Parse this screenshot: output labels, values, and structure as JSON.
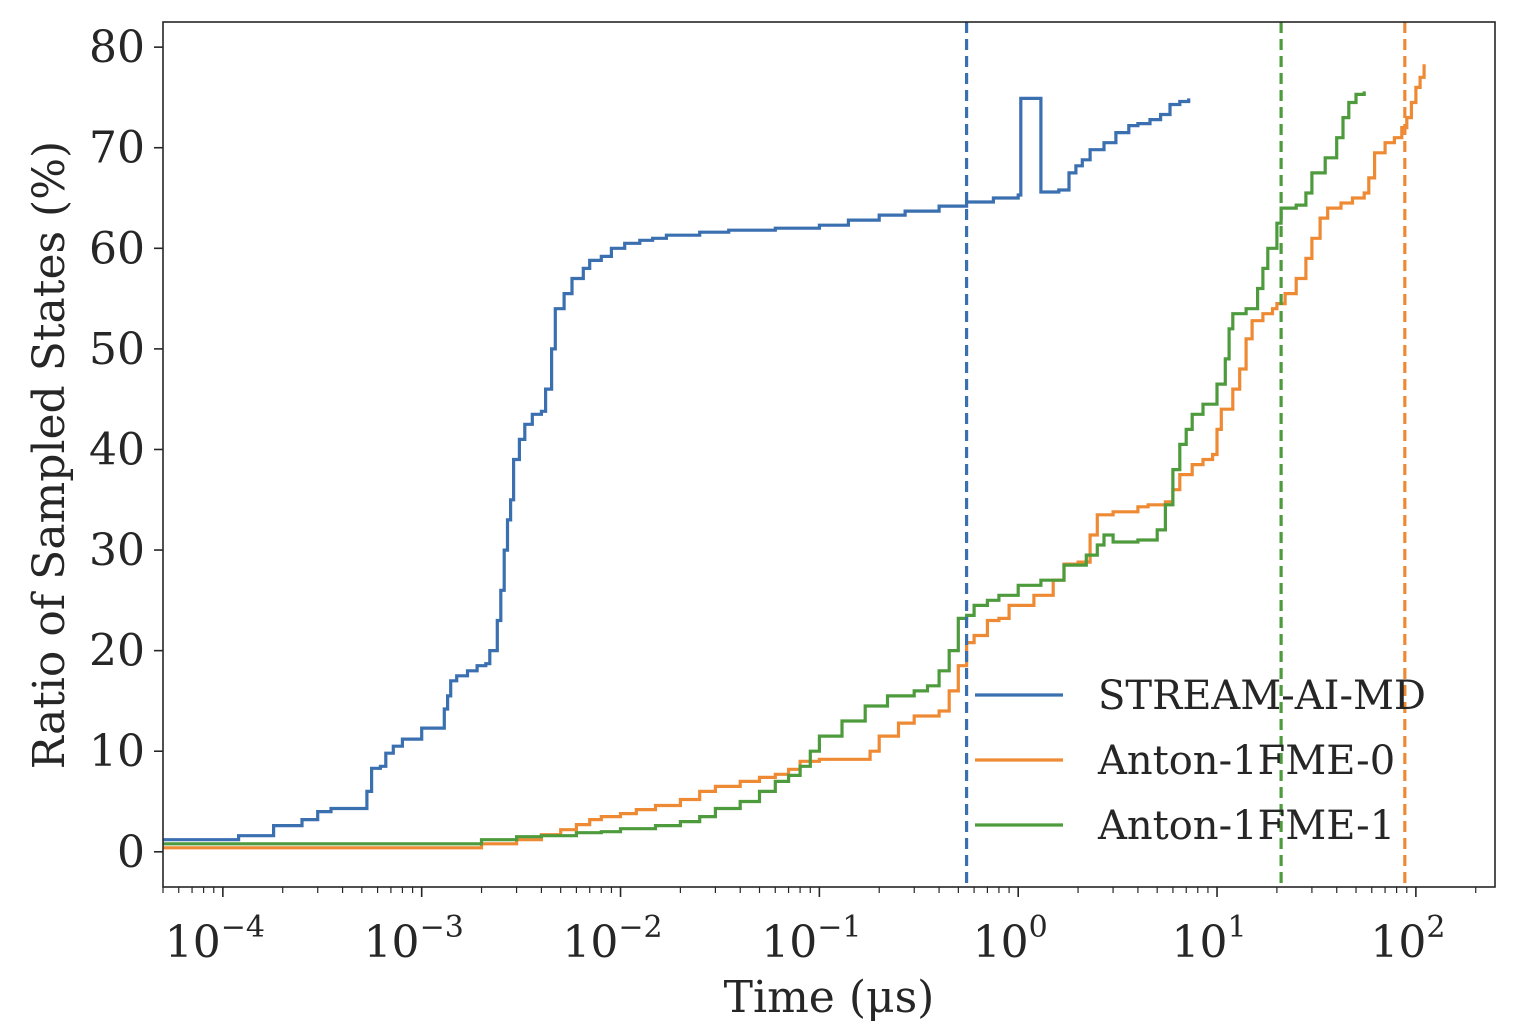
{
  "chart_data": {
    "type": "line",
    "title": "",
    "xlabel": "Time (μs)",
    "ylabel": "Ratio of Sampled States (%)",
    "xscale": "log",
    "xlim": [
      5e-05,
      250
    ],
    "ylim": [
      -3.5,
      82.5
    ],
    "yticks": [
      0,
      10,
      20,
      30,
      40,
      50,
      60,
      70,
      80
    ],
    "ytick_labels": [
      "0",
      "10",
      "20",
      "30",
      "40",
      "50",
      "60",
      "70",
      "80"
    ],
    "xticks": [
      {
        "value": 0.0001,
        "base": "10",
        "exp": "−4"
      },
      {
        "value": 0.001,
        "base": "10",
        "exp": "−3"
      },
      {
        "value": 0.01,
        "base": "10",
        "exp": "−2"
      },
      {
        "value": 0.1,
        "base": "10",
        "exp": "−1"
      },
      {
        "value": 1,
        "base": "10",
        "exp": "0"
      },
      {
        "value": 10,
        "base": "10",
        "exp": "1"
      },
      {
        "value": 100,
        "base": "10",
        "exp": "2"
      }
    ],
    "grid": false,
    "legend_position": "lower-right",
    "series": [
      {
        "name": "STREAM-AI-MD",
        "color": "#3a6fb0",
        "points": [
          [
            5e-05,
            1.2
          ],
          [
            0.00012,
            1.2
          ],
          [
            0.00012,
            1.6
          ],
          [
            0.00018,
            1.6
          ],
          [
            0.00018,
            2.6
          ],
          [
            0.00025,
            2.6
          ],
          [
            0.00025,
            3.2
          ],
          [
            0.0003,
            3.2
          ],
          [
            0.0003,
            4.0
          ],
          [
            0.00035,
            4.0
          ],
          [
            0.00035,
            4.3
          ],
          [
            0.0005,
            4.3
          ],
          [
            0.00053,
            6.0
          ],
          [
            0.00056,
            8.3
          ],
          [
            0.00062,
            8.5
          ],
          [
            0.00066,
            9.8
          ],
          [
            0.00072,
            10.5
          ],
          [
            0.0008,
            11.2
          ],
          [
            0.001,
            11.2
          ],
          [
            0.001,
            12.3
          ],
          [
            0.0012,
            12.3
          ],
          [
            0.0013,
            14.2
          ],
          [
            0.00135,
            15.5
          ],
          [
            0.0014,
            17.0
          ],
          [
            0.0015,
            17.5
          ],
          [
            0.0017,
            18.0
          ],
          [
            0.0019,
            18.5
          ],
          [
            0.0021,
            18.7
          ],
          [
            0.0022,
            20.0
          ],
          [
            0.0024,
            23.0
          ],
          [
            0.0025,
            26.0
          ],
          [
            0.0026,
            30.0
          ],
          [
            0.0027,
            33.0
          ],
          [
            0.0028,
            35.0
          ],
          [
            0.0029,
            39.0
          ],
          [
            0.0031,
            41.0
          ],
          [
            0.0033,
            42.5
          ],
          [
            0.0036,
            43.5
          ],
          [
            0.004,
            43.8
          ],
          [
            0.0042,
            46.0
          ],
          [
            0.0045,
            50.0
          ],
          [
            0.0047,
            54.0
          ],
          [
            0.0052,
            55.5
          ],
          [
            0.0057,
            57.0
          ],
          [
            0.0065,
            58.0
          ],
          [
            0.007,
            58.8
          ],
          [
            0.008,
            59.2
          ],
          [
            0.009,
            60.0
          ],
          [
            0.0105,
            60.5
          ],
          [
            0.0125,
            60.8
          ],
          [
            0.0145,
            61.0
          ],
          [
            0.017,
            61.3
          ],
          [
            0.025,
            61.6
          ],
          [
            0.035,
            61.8
          ],
          [
            0.06,
            62.0
          ],
          [
            0.1,
            62.3
          ],
          [
            0.14,
            62.8
          ],
          [
            0.2,
            63.3
          ],
          [
            0.27,
            63.7
          ],
          [
            0.4,
            64.2
          ],
          [
            0.55,
            64.6
          ],
          [
            0.75,
            65.0
          ],
          [
            1.0,
            65.3
          ],
          [
            1.3,
            65.6
          ],
          [
            1.6,
            65.8
          ],
          [
            1.8,
            67.5
          ],
          [
            1.95,
            68.2
          ],
          [
            2.1,
            68.8
          ],
          [
            2.3,
            69.8
          ],
          [
            2.7,
            70.5
          ],
          [
            3.1,
            71.5
          ],
          [
            3.6,
            72.2
          ],
          [
            4.0,
            72.4
          ],
          [
            4.6,
            72.8
          ],
          [
            5.2,
            73.3
          ],
          [
            5.8,
            74.3
          ],
          [
            6.5,
            74.6
          ],
          [
            7.2,
            74.9
          ],
          [
            1.03,
            74.9
          ]
        ]
      },
      {
        "name": "Anton-1FME-0",
        "color": "#ef8a34",
        "points": [
          [
            5e-05,
            0.4
          ],
          [
            0.001,
            0.4
          ],
          [
            0.002,
            0.8
          ],
          [
            0.003,
            1.2
          ],
          [
            0.004,
            1.7
          ],
          [
            0.005,
            2.2
          ],
          [
            0.006,
            2.7
          ],
          [
            0.007,
            3.2
          ],
          [
            0.008,
            3.5
          ],
          [
            0.01,
            3.8
          ],
          [
            0.012,
            4.2
          ],
          [
            0.015,
            4.6
          ],
          [
            0.02,
            5.2
          ],
          [
            0.025,
            6.0
          ],
          [
            0.03,
            6.5
          ],
          [
            0.04,
            7.0
          ],
          [
            0.05,
            7.4
          ],
          [
            0.06,
            7.7
          ],
          [
            0.07,
            8.2
          ],
          [
            0.08,
            9.0
          ],
          [
            0.1,
            9.2
          ],
          [
            0.15,
            9.2
          ],
          [
            0.18,
            10.0
          ],
          [
            0.2,
            11.5
          ],
          [
            0.25,
            12.8
          ],
          [
            0.3,
            13.5
          ],
          [
            0.4,
            14.0
          ],
          [
            0.45,
            16.0
          ],
          [
            0.5,
            18.5
          ],
          [
            0.55,
            20.8
          ],
          [
            0.6,
            21.5
          ],
          [
            0.7,
            23.0
          ],
          [
            0.8,
            23.2
          ],
          [
            0.9,
            24.5
          ],
          [
            1.2,
            25.5
          ],
          [
            1.5,
            27.0
          ],
          [
            1.7,
            28.6
          ],
          [
            2.0,
            28.8
          ],
          [
            2.3,
            31.5
          ],
          [
            2.5,
            33.5
          ],
          [
            3.0,
            33.8
          ],
          [
            4.0,
            34.3
          ],
          [
            4.5,
            34.5
          ],
          [
            5.5,
            34.8
          ],
          [
            6.0,
            36.0
          ],
          [
            6.5,
            37.5
          ],
          [
            7.5,
            38.5
          ],
          [
            8.5,
            39.0
          ],
          [
            9.5,
            39.5
          ],
          [
            10.0,
            42.0
          ],
          [
            10.5,
            44.0
          ],
          [
            12,
            46.0
          ],
          [
            13,
            48.0
          ],
          [
            14,
            51.0
          ],
          [
            15,
            52.8
          ],
          [
            17,
            53.5
          ],
          [
            19,
            54.0
          ],
          [
            20,
            54.5
          ],
          [
            22,
            55.5
          ],
          [
            25,
            57.0
          ],
          [
            28,
            59.0
          ],
          [
            30,
            61.0
          ],
          [
            33,
            63.0
          ],
          [
            36,
            64.0
          ],
          [
            42,
            64.5
          ],
          [
            48,
            65.0
          ],
          [
            55,
            65.5
          ],
          [
            58,
            67.0
          ],
          [
            62,
            69.5
          ],
          [
            70,
            70.5
          ],
          [
            78,
            71.0
          ],
          [
            85,
            72.0
          ],
          [
            90,
            73.0
          ],
          [
            95,
            74.5
          ],
          [
            100,
            76.0
          ],
          [
            105,
            77.0
          ],
          [
            110,
            78.3
          ]
        ]
      },
      {
        "name": "Anton-1FME-1",
        "color": "#4d9b3c",
        "points": [
          [
            5e-05,
            0.8
          ],
          [
            0.001,
            0.8
          ],
          [
            0.002,
            1.2
          ],
          [
            0.003,
            1.5
          ],
          [
            0.004,
            1.6
          ],
          [
            0.006,
            1.9
          ],
          [
            0.008,
            2.0
          ],
          [
            0.01,
            2.3
          ],
          [
            0.015,
            2.6
          ],
          [
            0.02,
            3.0
          ],
          [
            0.025,
            3.5
          ],
          [
            0.03,
            4.3
          ],
          [
            0.04,
            5.0
          ],
          [
            0.05,
            6.0
          ],
          [
            0.06,
            7.0
          ],
          [
            0.07,
            7.6
          ],
          [
            0.08,
            8.5
          ],
          [
            0.09,
            10.0
          ],
          [
            0.1,
            11.5
          ],
          [
            0.13,
            13.0
          ],
          [
            0.17,
            14.5
          ],
          [
            0.22,
            15.5
          ],
          [
            0.3,
            16.0
          ],
          [
            0.35,
            16.5
          ],
          [
            0.4,
            18.0
          ],
          [
            0.45,
            20.0
          ],
          [
            0.5,
            23.2
          ],
          [
            0.55,
            23.5
          ],
          [
            0.6,
            24.5
          ],
          [
            0.7,
            25.0
          ],
          [
            0.8,
            25.5
          ],
          [
            1.0,
            26.5
          ],
          [
            1.3,
            27.0
          ],
          [
            1.7,
            28.5
          ],
          [
            2.2,
            29.5
          ],
          [
            2.5,
            30.5
          ],
          [
            2.7,
            31.5
          ],
          [
            3.0,
            30.8
          ],
          [
            4.0,
            31.0
          ],
          [
            5.0,
            32.0
          ],
          [
            5.5,
            34.5
          ],
          [
            6.0,
            38.0
          ],
          [
            6.5,
            40.5
          ],
          [
            7.0,
            42.0
          ],
          [
            7.5,
            43.5
          ],
          [
            8.5,
            44.5
          ],
          [
            10,
            46.5
          ],
          [
            11,
            49.0
          ],
          [
            11.5,
            52.0
          ],
          [
            12,
            53.5
          ],
          [
            14,
            54.0
          ],
          [
            16,
            56.0
          ],
          [
            17,
            58.0
          ],
          [
            18,
            60.0
          ],
          [
            20,
            62.5
          ],
          [
            21,
            64.0
          ],
          [
            25,
            64.3
          ],
          [
            28,
            65.5
          ],
          [
            30,
            67.5
          ],
          [
            35,
            69.0
          ],
          [
            40,
            71.0
          ],
          [
            43,
            73.0
          ],
          [
            46,
            74.5
          ],
          [
            50,
            75.3
          ],
          [
            55,
            75.6
          ]
        ]
      }
    ],
    "vlines": [
      {
        "x": 0.55,
        "color": "#3a6fb0",
        "style": "dashed"
      },
      {
        "x": 21,
        "color": "#4d9b3c",
        "style": "dashed"
      },
      {
        "x": 88,
        "color": "#ef8a34",
        "style": "dashed"
      }
    ]
  }
}
